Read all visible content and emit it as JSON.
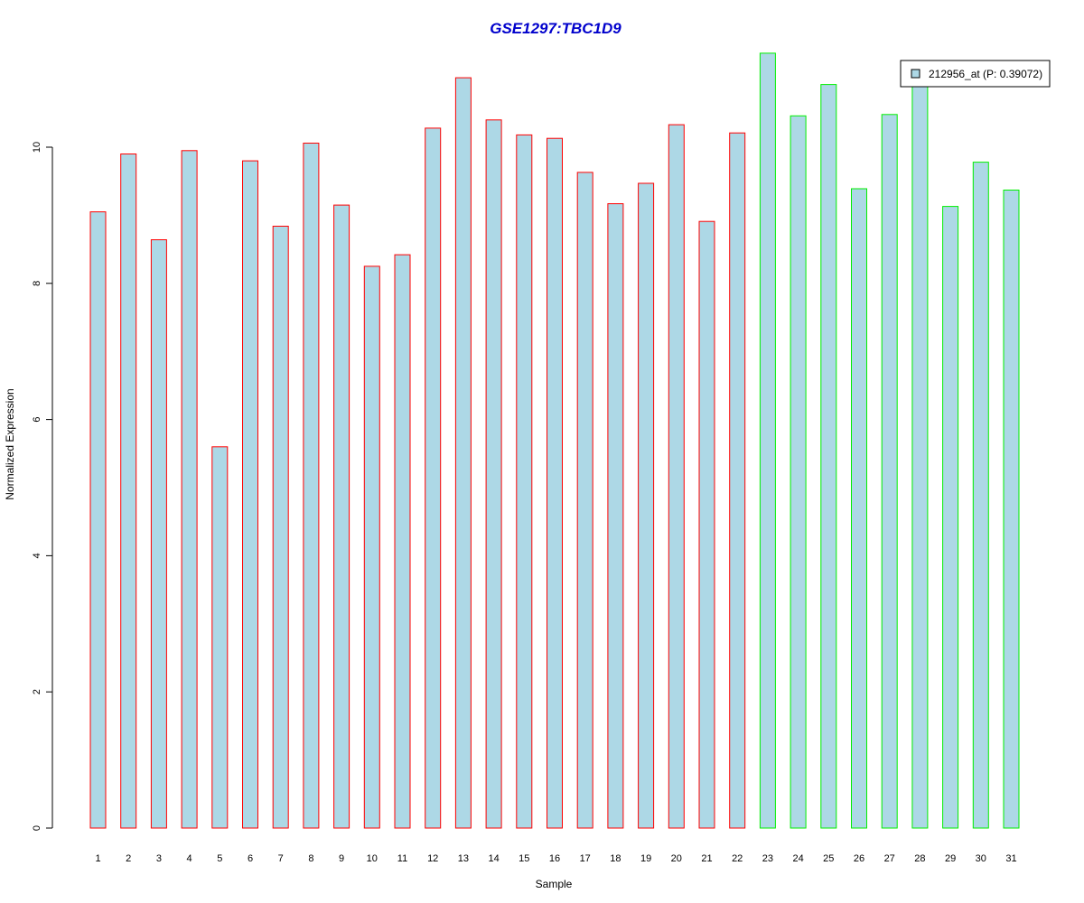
{
  "chart_data": {
    "type": "bar",
    "title": "GSE1297:TBC1D9",
    "title_color": "#0000cc",
    "xlabel": "Sample",
    "ylabel": "Normalized Expression",
    "ylim": [
      0,
      11.5
    ],
    "yticks": [
      0,
      2,
      4,
      6,
      8,
      10
    ],
    "categories": [
      "1",
      "2",
      "3",
      "4",
      "5",
      "6",
      "7",
      "8",
      "9",
      "10",
      "11",
      "12",
      "13",
      "14",
      "15",
      "16",
      "17",
      "18",
      "19",
      "20",
      "21",
      "22",
      "23",
      "24",
      "25",
      "26",
      "27",
      "28",
      "29",
      "30",
      "31"
    ],
    "series": [
      {
        "name": "212956_at (P: 0.39072)",
        "values": [
          9.05,
          9.9,
          8.64,
          9.95,
          5.6,
          9.8,
          8.84,
          10.06,
          9.15,
          8.25,
          8.42,
          10.28,
          11.02,
          10.4,
          10.18,
          10.13,
          9.63,
          9.17,
          9.47,
          10.33,
          8.91,
          10.21,
          11.38,
          10.46,
          10.92,
          9.39,
          10.48,
          10.98,
          9.13,
          9.78,
          9.37
        ]
      }
    ],
    "bar_fill": "#add8e6",
    "group_border_colors": [
      "#ff0000",
      "#00ee00"
    ],
    "group_of_sample": [
      0,
      0,
      0,
      0,
      0,
      0,
      0,
      0,
      0,
      0,
      0,
      0,
      0,
      0,
      0,
      0,
      0,
      0,
      0,
      0,
      0,
      0,
      1,
      1,
      1,
      1,
      1,
      1,
      1,
      1,
      1
    ],
    "grid": false,
    "legend_position": "top-right"
  }
}
